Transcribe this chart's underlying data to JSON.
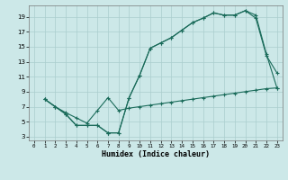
{
  "xlabel": "Humidex (Indice chaleur)",
  "background_color": "#cce8e8",
  "grid_color": "#aacece",
  "line_color": "#1a6b5a",
  "line1_x": [
    1,
    2,
    3,
    4,
    5,
    6,
    7,
    7,
    8,
    9,
    10,
    11,
    12,
    13,
    14,
    15,
    16,
    17,
    18,
    19,
    20,
    21,
    22,
    23
  ],
  "line1_y": [
    8,
    7,
    6,
    4.5,
    4.5,
    4.5,
    3.5,
    3.5,
    3.5,
    8.2,
    11.2,
    14.8,
    15.5,
    16.2,
    17.2,
    18.2,
    18.8,
    19.5,
    19.2,
    19.2,
    19.8,
    18.8,
    13.8,
    11.5
  ],
  "line2_x": [
    1,
    2,
    3,
    4,
    5,
    6,
    7,
    8,
    9,
    10,
    11,
    12,
    13,
    14,
    15,
    16,
    17,
    18,
    19,
    20,
    21,
    22,
    23
  ],
  "line2_y": [
    8,
    7,
    6,
    4.5,
    4.5,
    4.5,
    3.5,
    3.5,
    8.2,
    11.2,
    14.8,
    15.5,
    16.2,
    17.2,
    18.2,
    18.8,
    19.5,
    19.2,
    19.2,
    19.8,
    19.2,
    14.0,
    9.5
  ],
  "line3_x": [
    1,
    2,
    3,
    4,
    5,
    6,
    7,
    8,
    9,
    10,
    11,
    12,
    13,
    14,
    15,
    16,
    17,
    18,
    19,
    20,
    21,
    22,
    23
  ],
  "line3_y": [
    8,
    7,
    6.2,
    5.5,
    4.8,
    6.5,
    8.2,
    6.5,
    6.8,
    7.0,
    7.2,
    7.4,
    7.6,
    7.8,
    8.0,
    8.2,
    8.4,
    8.6,
    8.8,
    9.0,
    9.2,
    9.4,
    9.5
  ],
  "xlim": [
    -0.5,
    23.5
  ],
  "ylim": [
    2.5,
    20.5
  ],
  "xticks": [
    0,
    1,
    2,
    3,
    4,
    5,
    6,
    7,
    8,
    9,
    10,
    11,
    12,
    13,
    14,
    15,
    16,
    17,
    18,
    19,
    20,
    21,
    22,
    23
  ],
  "yticks": [
    3,
    5,
    7,
    9,
    11,
    13,
    15,
    17,
    19
  ]
}
